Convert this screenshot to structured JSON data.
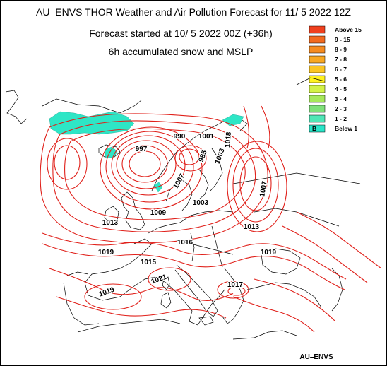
{
  "header": {
    "title": "AU–ENVS THOR Weather and Air Pollution Forecast for 11/ 5 2022  12Z",
    "subtitle": "Forecast started at 10/ 5 2022  00Z (+36h)",
    "field": "6h accumulated snow and MSLP"
  },
  "legend": {
    "items": [
      {
        "label": "Above   15",
        "color": "#f0401e"
      },
      {
        "label": "9  -  15",
        "color": "#f26a1f"
      },
      {
        "label": "8  -   9",
        "color": "#f58b20"
      },
      {
        "label": "7  -   8",
        "color": "#f8a722"
      },
      {
        "label": "6  -   7",
        "color": "#fbc523"
      },
      {
        "label": "5  -   6",
        "color": "#fff21f"
      },
      {
        "label": "4  -   5",
        "color": "#d3f246"
      },
      {
        "label": "3  -   4",
        "color": "#a6e85a"
      },
      {
        "label": "2  -   3",
        "color": "#7fe07a"
      },
      {
        "label": "1  -   2",
        "color": "#4fe6b6"
      },
      {
        "label": "Below    1",
        "color": "#28e5c8",
        "symbol": "B"
      }
    ]
  },
  "isobar_labels": [
    "990",
    "1001",
    "997",
    "985",
    "1003",
    "1007",
    "1007",
    "1013",
    "1009",
    "1003",
    "1013",
    "1016",
    "1019",
    "1015",
    "1018",
    "1019",
    "1021",
    "1017",
    "1019"
  ],
  "colors": {
    "isobar": "#e0201a",
    "coast": "#000000",
    "snow": "#2ee6c6"
  },
  "credit": "AU–ENVS"
}
